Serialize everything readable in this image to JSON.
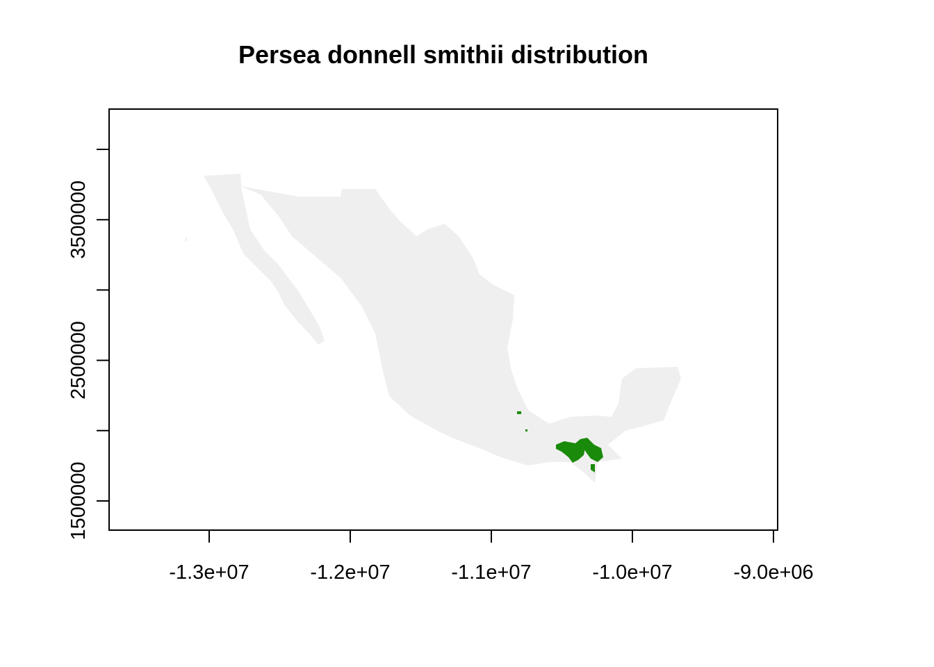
{
  "title": "Persea donnell smithii distribution",
  "colors": {
    "land": "#efefef",
    "presence": "#1a8a0a",
    "frame": "#000000",
    "background": "#ffffff"
  },
  "map": {
    "x_range": [
      -13700000,
      -8950000
    ],
    "y_range": [
      1300000,
      4300000
    ],
    "x_ticks": [
      {
        "value": -13000000,
        "label": "-1.3e+07"
      },
      {
        "value": -12000000,
        "label": "-1.2e+07"
      },
      {
        "value": -11000000,
        "label": "-1.1e+07"
      },
      {
        "value": -10000000,
        "label": "-1.0e+07"
      },
      {
        "value": -9000000,
        "label": "-9.0e+06"
      }
    ],
    "y_ticks": [
      {
        "value": 1500000,
        "label": "1500000"
      },
      {
        "value": 2000000,
        "label": ""
      },
      {
        "value": 2500000,
        "label": "2500000"
      },
      {
        "value": 3000000,
        "label": ""
      },
      {
        "value": 3500000,
        "label": "3500000"
      },
      {
        "value": 4000000,
        "label": ""
      }
    ]
  }
}
